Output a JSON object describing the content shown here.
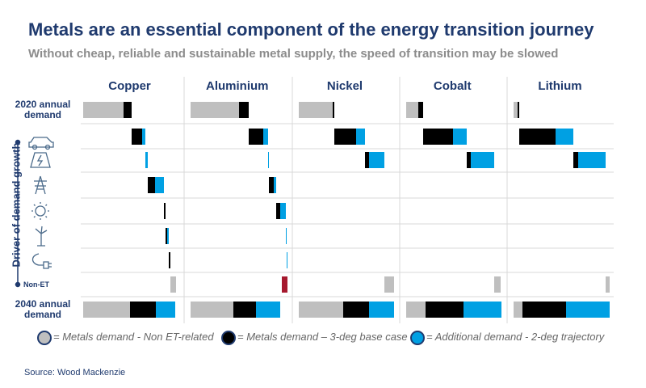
{
  "chart_data": {
    "type": "waterfall",
    "title": "Metals are an essential component of the energy transition journey",
    "subtitle": "Without cheap, reliable and sustainable metal supply, the speed of transition may be slowed",
    "driver_label": "Driver of demand growth",
    "start_label": "2020 annual demand",
    "end_label": "2040 annual demand",
    "categories": [
      null,
      null,
      null,
      null,
      null,
      null,
      "Non-ET"
    ],
    "series": [
      {
        "name": "= Metals demand - Non ET-related",
        "color": "#bfbfbf"
      },
      {
        "name": "= Metals demand – 3-deg base case",
        "color": "#000000"
      },
      {
        "name": "= Additional demand - 2-deg trajectory",
        "color": "#00a0e3"
      }
    ],
    "negative_color": "#a6192e",
    "xlim": [
      0,
      125
    ],
    "panels": [
      {
        "name": "Copper",
        "start": [
          50,
          10
        ],
        "drivers": [
          [
            0,
            13,
            4
          ],
          [
            0,
            0,
            3
          ],
          [
            0,
            9,
            11
          ],
          [
            0,
            2,
            0
          ],
          [
            0,
            2,
            2
          ],
          [
            0,
            2,
            0
          ],
          [
            7,
            0,
            0
          ]
        ],
        "end": [
          58,
          32,
          24
        ]
      },
      {
        "name": "Aluminium",
        "start": [
          60,
          12
        ],
        "drivers": [
          [
            0,
            18,
            6
          ],
          [
            0,
            0,
            1
          ],
          [
            0,
            6,
            3
          ],
          [
            0,
            5,
            7
          ],
          [
            0,
            0,
            1
          ],
          [
            0,
            0,
            1
          ],
          [
            -7,
            0,
            0
          ]
        ],
        "end": [
          53,
          28,
          30
        ]
      },
      {
        "name": "Nickel",
        "start": [
          42,
          2
        ],
        "drivers": [
          [
            0,
            27,
            11
          ],
          [
            0,
            5,
            19
          ],
          [
            0,
            0,
            0
          ],
          [
            0,
            0,
            0
          ],
          [
            0,
            0,
            0
          ],
          [
            0,
            0,
            0
          ],
          [
            12,
            0,
            0
          ]
        ],
        "end": [
          55,
          32,
          31
        ]
      },
      {
        "name": "Cobalt",
        "start": [
          15,
          6
        ],
        "drivers": [
          [
            0,
            37,
            17
          ],
          [
            0,
            5,
            29
          ],
          [
            0,
            0,
            0
          ],
          [
            0,
            0,
            0
          ],
          [
            0,
            0,
            0
          ],
          [
            0,
            0,
            0
          ],
          [
            8,
            0,
            0
          ]
        ],
        "end": [
          24,
          47,
          47
        ]
      },
      {
        "name": "Lithium",
        "start": [
          5,
          2
        ],
        "drivers": [
          [
            0,
            45,
            22
          ],
          [
            0,
            6,
            34
          ],
          [
            0,
            0,
            0
          ],
          [
            0,
            0,
            0
          ],
          [
            0,
            0,
            0
          ],
          [
            0,
            0,
            0
          ],
          [
            5,
            0,
            0
          ]
        ],
        "end": [
          11,
          54,
          54
        ]
      }
    ],
    "source": "Source: Wood Mackenzie"
  }
}
